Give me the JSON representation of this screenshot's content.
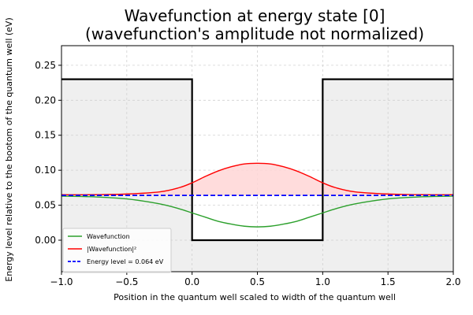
{
  "chart_data": {
    "type": "line",
    "title": [
      "Wavefunction at energy state [0]",
      "(wavefunction's amplitude not normalized)"
    ],
    "xlabel": "Position in the quantum well scaled to width of the quantum well",
    "ylabel": "Energy level relative to the bootom of the quantum well (eV)",
    "xlim": [
      -1.0,
      2.0
    ],
    "ylim": [
      -0.045,
      0.278
    ],
    "xticks": [
      -1.0,
      -0.5,
      0.0,
      0.5,
      1.0,
      1.5,
      2.0
    ],
    "xtick_labels": [
      "−1.0",
      "−0.5",
      "0.0",
      "0.5",
      "1.0",
      "1.5",
      "2.0"
    ],
    "yticks": [
      0.0,
      0.05,
      0.1,
      0.15,
      0.2,
      0.25
    ],
    "ytick_labels": [
      "0.00",
      "0.05",
      "0.10",
      "0.15",
      "0.20",
      "0.25"
    ],
    "grid": true,
    "legend_position": "lower-left",
    "barrier_height": 0.23,
    "energy_level": 0.064,
    "series": [
      {
        "name": "Wavefunction",
        "color": "#2ca02c",
        "x": [
          -1.0,
          -0.75,
          -0.5,
          -0.25,
          -0.1,
          0.0,
          0.1,
          0.2,
          0.3,
          0.4,
          0.5,
          0.6,
          0.7,
          0.8,
          0.9,
          1.0,
          1.1,
          1.25,
          1.5,
          1.75,
          2.0
        ],
        "y": [
          0.063,
          0.062,
          0.059,
          0.052,
          0.045,
          0.039,
          0.033,
          0.027,
          0.023,
          0.02,
          0.019,
          0.02,
          0.023,
          0.027,
          0.033,
          0.039,
          0.045,
          0.052,
          0.059,
          0.062,
          0.063
        ]
      },
      {
        "name": "|Wavefunction|²",
        "color": "#ff0000",
        "x": [
          -1.0,
          -0.75,
          -0.5,
          -0.25,
          -0.1,
          0.0,
          0.1,
          0.2,
          0.3,
          0.4,
          0.5,
          0.6,
          0.7,
          0.8,
          0.9,
          1.0,
          1.1,
          1.25,
          1.5,
          1.75,
          2.0
        ],
        "y": [
          0.065,
          0.065,
          0.066,
          0.069,
          0.075,
          0.082,
          0.091,
          0.099,
          0.105,
          0.109,
          0.11,
          0.109,
          0.105,
          0.099,
          0.091,
          0.082,
          0.075,
          0.069,
          0.066,
          0.065,
          0.065
        ]
      },
      {
        "name": "Energy level = 0.064 eV",
        "color": "#0000ff",
        "style": "dashed",
        "x": [
          -1.0,
          2.0
        ],
        "y": [
          0.064,
          0.064
        ]
      }
    ],
    "potential": {
      "color": "#000000",
      "x": [
        -1.0,
        0.0,
        0.0,
        1.0,
        1.0,
        2.0
      ],
      "y": [
        0.23,
        0.23,
        0.0,
        0.0,
        0.23,
        0.23
      ]
    },
    "fill_color": "#ffd6d6",
    "barrier_fill_color": "#efefef"
  }
}
